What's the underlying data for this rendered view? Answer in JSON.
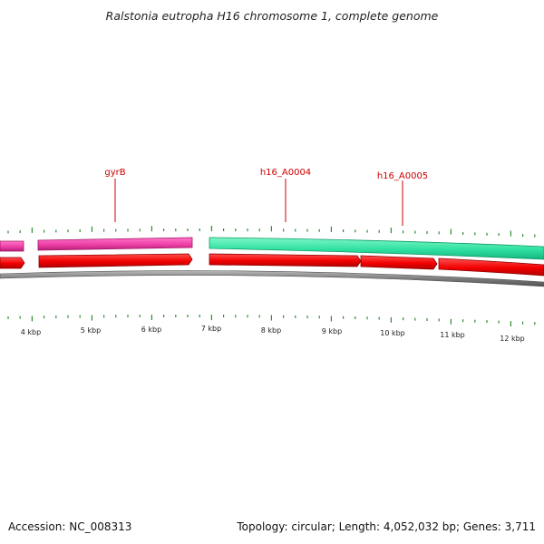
{
  "header": {
    "title": "Ralstonia eutropha H16 chromosome 1, complete genome"
  },
  "map": {
    "gene_labels": [
      {
        "name": "gyrB",
        "color": "#cc0000"
      },
      {
        "name": "h16_A0004",
        "color": "#cc0000"
      },
      {
        "name": "h16_A0005",
        "color": "#cc0000"
      }
    ],
    "scale_labels": [
      "4 kbp",
      "5 kbp",
      "6 kbp",
      "7 kbp",
      "8 kbp",
      "9 kbp",
      "10 kbp",
      "11 kbp",
      "12 kbp"
    ],
    "colors": {
      "magenta_track": "#ee3fa8",
      "teal_track": "#2fe0a0",
      "red_track": "#f20000",
      "backbone": "#7d7d7d",
      "ticks": "#2f8a2f",
      "labels": "#cc0000"
    }
  },
  "footer": {
    "accession": "Accession: NC_008313",
    "summary": "Topology: circular; Length: 4,052,032 bp; Genes: 3,711"
  }
}
